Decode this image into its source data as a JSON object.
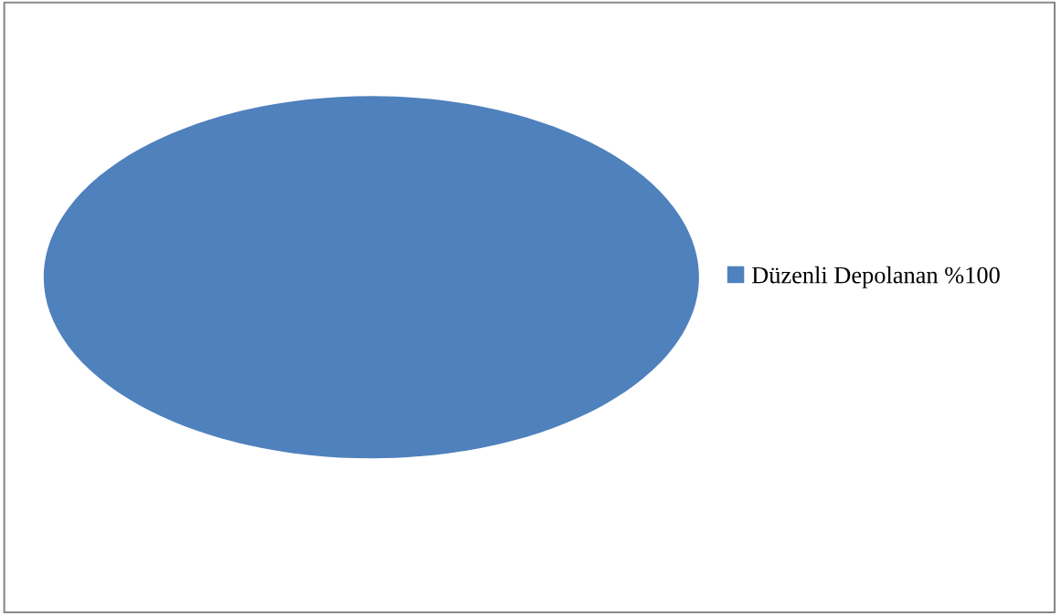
{
  "chart_data": {
    "type": "pie",
    "categories": [
      "Düzenli Depolanan %100"
    ],
    "values": [
      100
    ],
    "colors": [
      "#4f81bd"
    ],
    "legend": "right"
  }
}
